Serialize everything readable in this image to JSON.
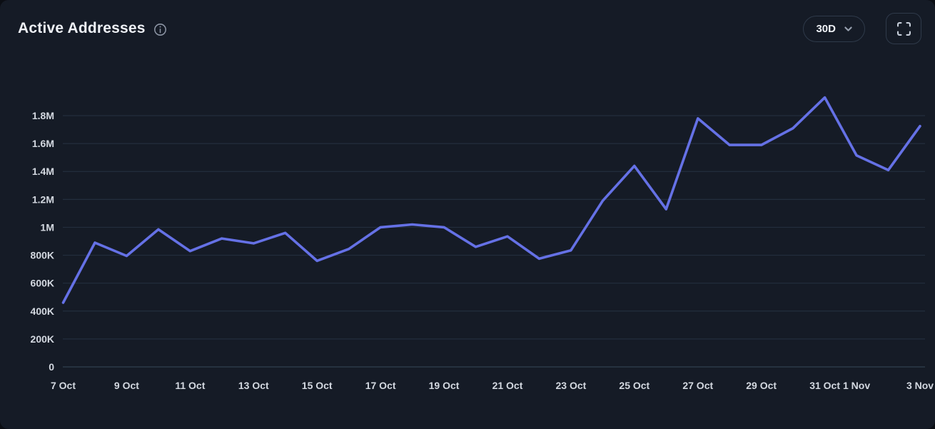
{
  "header": {
    "title": "Active Addresses",
    "range_selector": {
      "selected": "30D"
    },
    "icons": [
      "info-icon",
      "chevron-down-icon",
      "fullscreen-icon"
    ]
  },
  "colors": {
    "card_background": "#151b26",
    "line": "#6571e6",
    "grid": "#232e3d",
    "zero_line": "#32405266",
    "zero_line_solid": "#31404f",
    "tick_text": "#d3d8e0",
    "title_text": "#eef1f6",
    "button_border": "#2f3a4a",
    "icon_gray": "#97a0af"
  },
  "chart_data": {
    "type": "line",
    "title": "Active Addresses",
    "x": [
      "7 Oct",
      "8 Oct",
      "9 Oct",
      "10 Oct",
      "11 Oct",
      "12 Oct",
      "13 Oct",
      "14 Oct",
      "15 Oct",
      "16 Oct",
      "17 Oct",
      "18 Oct",
      "19 Oct",
      "20 Oct",
      "21 Oct",
      "22 Oct",
      "23 Oct",
      "24 Oct",
      "25 Oct",
      "26 Oct",
      "27 Oct",
      "28 Oct",
      "29 Oct",
      "30 Oct",
      "31 Oct",
      "1 Nov",
      "2 Nov",
      "3 Nov"
    ],
    "series": [
      {
        "name": "Active Addresses",
        "values": [
          460000,
          890000,
          795000,
          985000,
          830000,
          920000,
          885000,
          960000,
          760000,
          845000,
          1000000,
          1020000,
          1000000,
          860000,
          935000,
          775000,
          835000,
          1190000,
          1440000,
          1130000,
          1780000,
          1590000,
          1590000,
          1710000,
          1930000,
          1515000,
          1410000,
          1725000
        ]
      }
    ],
    "x_tick_labels": [
      {
        "label": "7 Oct",
        "index": 0
      },
      {
        "label": "9 Oct",
        "index": 2
      },
      {
        "label": "11 Oct",
        "index": 4
      },
      {
        "label": "13 Oct",
        "index": 6
      },
      {
        "label": "15 Oct",
        "index": 8
      },
      {
        "label": "17 Oct",
        "index": 10
      },
      {
        "label": "19 Oct",
        "index": 12
      },
      {
        "label": "21 Oct",
        "index": 14
      },
      {
        "label": "23 Oct",
        "index": 16
      },
      {
        "label": "25 Oct",
        "index": 18
      },
      {
        "label": "27 Oct",
        "index": 20
      },
      {
        "label": "29 Oct",
        "index": 22
      },
      {
        "label": "31 Oct",
        "index": 24
      },
      {
        "label": "1 Nov",
        "index": 25
      },
      {
        "label": "3 Nov",
        "index": 27
      }
    ],
    "y_ticks": [
      {
        "value": 1800000,
        "label": "1.8M"
      },
      {
        "value": 1600000,
        "label": "1.6M"
      },
      {
        "value": 1400000,
        "label": "1.4M"
      },
      {
        "value": 1200000,
        "label": "1.2M"
      },
      {
        "value": 1000000,
        "label": "1M"
      },
      {
        "value": 800000,
        "label": "800K"
      },
      {
        "value": 600000,
        "label": "600K"
      },
      {
        "value": 400000,
        "label": "400K"
      },
      {
        "value": 200000,
        "label": "200K"
      },
      {
        "value": 0,
        "label": "0"
      }
    ],
    "ylim": [
      0,
      2050000
    ],
    "xlabel": "",
    "ylabel": "",
    "grid": "horizontal",
    "legend": "none"
  }
}
